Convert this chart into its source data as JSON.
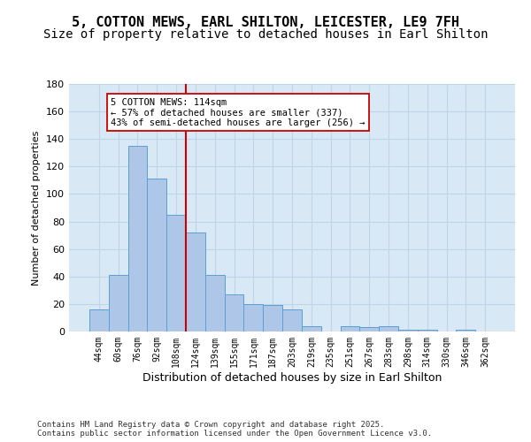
{
  "title1": "5, COTTON MEWS, EARL SHILTON, LEICESTER, LE9 7FH",
  "title2": "Size of property relative to detached houses in Earl Shilton",
  "xlabel": "Distribution of detached houses by size in Earl Shilton",
  "ylabel": "Number of detached properties",
  "bin_labels": [
    "44sqm",
    "60sqm",
    "76sqm",
    "92sqm",
    "108sqm",
    "124sqm",
    "139sqm",
    "155sqm",
    "171sqm",
    "187sqm",
    "203sqm",
    "219sqm",
    "235sqm",
    "251sqm",
    "267sqm",
    "283sqm",
    "298sqm",
    "314sqm",
    "330sqm",
    "346sqm",
    "362sqm"
  ],
  "bar_values": [
    16,
    41,
    135,
    111,
    85,
    72,
    41,
    27,
    20,
    19,
    16,
    4,
    0,
    4,
    3,
    4,
    1,
    1,
    0,
    1,
    0
  ],
  "bar_color": "#aec6e8",
  "bar_edge_color": "#5a9fd4",
  "vline_x": 4.5,
  "vline_color": "#cc0000",
  "annotation_text": "5 COTTON MEWS: 114sqm\n← 57% of detached houses are smaller (337)\n43% of semi-detached houses are larger (256) →",
  "annotation_box_color": "white",
  "annotation_box_edge_color": "#cc0000",
  "ylim": [
    0,
    180
  ],
  "yticks": [
    0,
    20,
    40,
    60,
    80,
    100,
    120,
    140,
    160,
    180
  ],
  "grid_color": "#c0d4e8",
  "background_color": "#d8e8f4",
  "footer_text": "Contains HM Land Registry data © Crown copyright and database right 2025.\nContains public sector information licensed under the Open Government Licence v3.0.",
  "title1_fontsize": 11,
  "title2_fontsize": 10
}
